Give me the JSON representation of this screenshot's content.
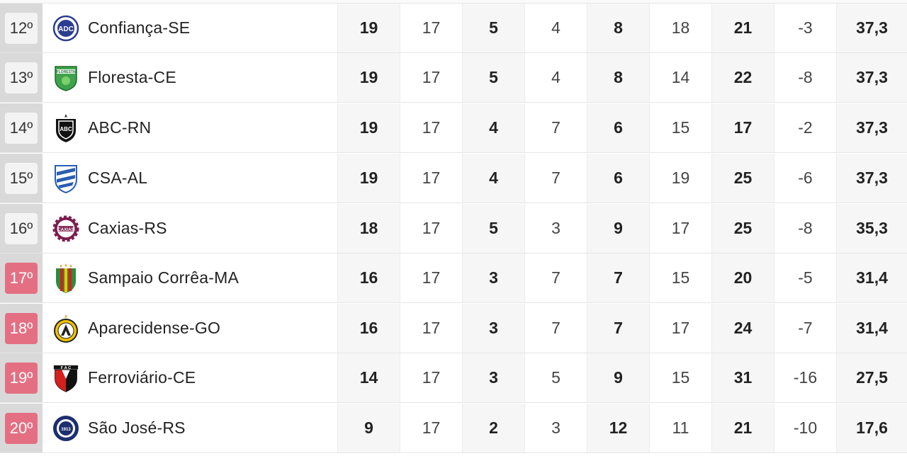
{
  "rows": [
    {
      "pos": "12º",
      "team": "Confiança-SE",
      "crest": "confianca-crest",
      "stats": [
        "19",
        "17",
        "5",
        "4",
        "8",
        "18",
        "21",
        "-3",
        "37,3"
      ],
      "relegation": false
    },
    {
      "pos": "13º",
      "team": "Floresta-CE",
      "crest": "floresta-crest",
      "stats": [
        "19",
        "17",
        "5",
        "4",
        "8",
        "14",
        "22",
        "-8",
        "37,3"
      ],
      "relegation": false
    },
    {
      "pos": "14º",
      "team": "ABC-RN",
      "crest": "abc-crest",
      "stats": [
        "19",
        "17",
        "4",
        "7",
        "6",
        "15",
        "17",
        "-2",
        "37,3"
      ],
      "relegation": false
    },
    {
      "pos": "15º",
      "team": "CSA-AL",
      "crest": "csa-crest",
      "stats": [
        "19",
        "17",
        "4",
        "7",
        "6",
        "19",
        "25",
        "-6",
        "37,3"
      ],
      "relegation": false
    },
    {
      "pos": "16º",
      "team": "Caxias-RS",
      "crest": "caxias-crest",
      "stats": [
        "18",
        "17",
        "5",
        "3",
        "9",
        "17",
        "25",
        "-8",
        "35,3"
      ],
      "relegation": false
    },
    {
      "pos": "17º",
      "team": "Sampaio Corrêa-MA",
      "crest": "sampaio-crest",
      "stats": [
        "16",
        "17",
        "3",
        "7",
        "7",
        "15",
        "20",
        "-5",
        "31,4"
      ],
      "relegation": true
    },
    {
      "pos": "18º",
      "team": "Aparecidense-GO",
      "crest": "aparecidense-crest",
      "stats": [
        "16",
        "17",
        "3",
        "7",
        "7",
        "17",
        "24",
        "-7",
        "31,4"
      ],
      "relegation": true
    },
    {
      "pos": "19º",
      "team": "Ferroviário-CE",
      "crest": "ferroviario-crest",
      "stats": [
        "14",
        "17",
        "3",
        "5",
        "9",
        "15",
        "31",
        "-16",
        "27,5"
      ],
      "relegation": true
    },
    {
      "pos": "20º",
      "team": "São José-RS",
      "crest": "saojose-crest",
      "stats": [
        "9",
        "17",
        "2",
        "3",
        "12",
        "11",
        "21",
        "-10",
        "17,6"
      ],
      "relegation": true
    }
  ],
  "colors": {
    "relegation_badge": "#e46f83",
    "pos_column": "#d9d9d9",
    "stripe": "#f6f6f6"
  }
}
